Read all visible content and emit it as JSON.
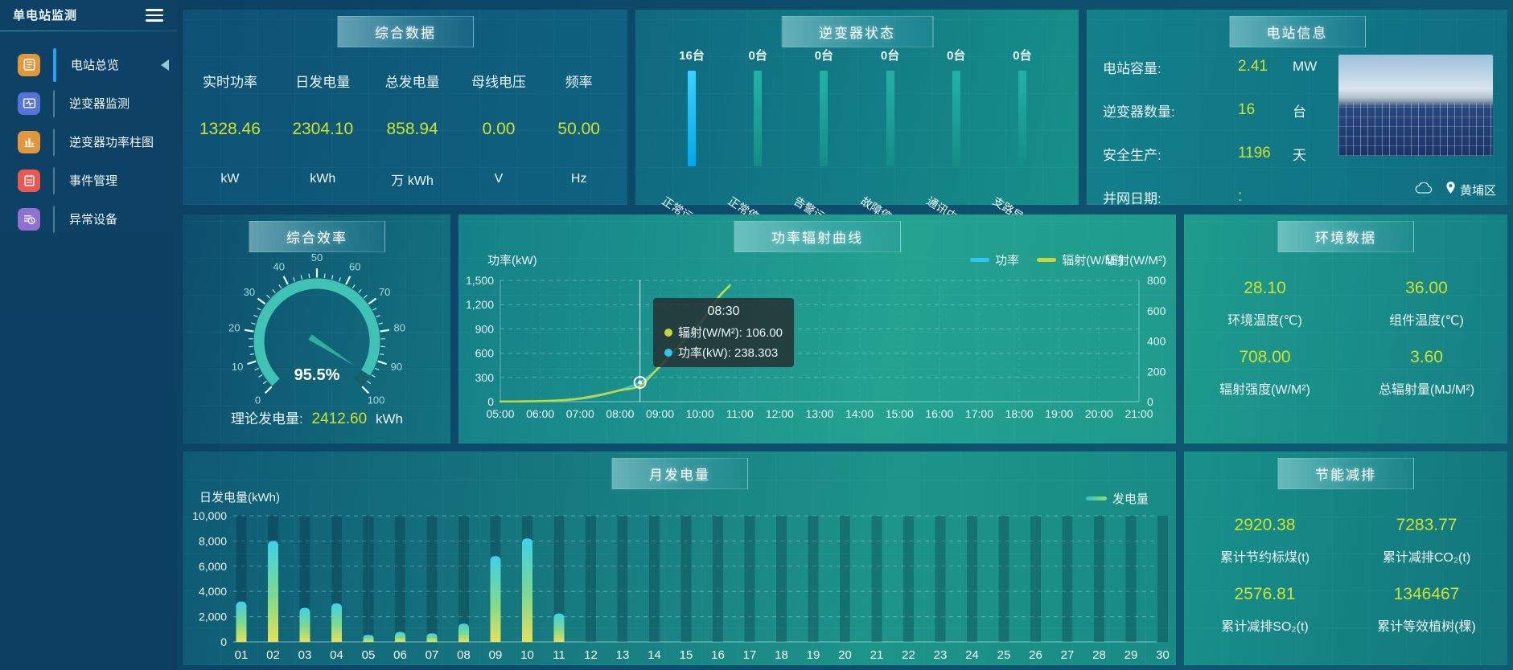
{
  "app": {
    "title": "单电站监测"
  },
  "sidebar": {
    "items": [
      {
        "label": "电站总览",
        "icon": "overview",
        "color": "#e2973a",
        "active": true
      },
      {
        "label": "逆变器监测",
        "icon": "inverter-monitor",
        "color": "#5673d8",
        "active": false
      },
      {
        "label": "逆变器功率柱图",
        "icon": "power-bars",
        "color": "#e2973a",
        "active": false
      },
      {
        "label": "事件管理",
        "icon": "event-manage",
        "color": "#e85a50",
        "active": false
      },
      {
        "label": "异常设备",
        "icon": "abnormal-device",
        "color": "#9070d0",
        "active": false
      }
    ]
  },
  "summary": {
    "title": "综合数据",
    "metrics": [
      {
        "label": "实时功率",
        "value": "1328.46",
        "unit": "kW"
      },
      {
        "label": "日发电量",
        "value": "2304.10",
        "unit": "kWh"
      },
      {
        "label": "总发电量",
        "value": "858.94",
        "unit": "万 kWh"
      },
      {
        "label": "母线电压",
        "value": "0.00",
        "unit": "V"
      },
      {
        "label": "频率",
        "value": "50.00",
        "unit": "Hz"
      }
    ]
  },
  "inverter_status": {
    "title": "逆变器状态",
    "bars": [
      {
        "count": "16台",
        "label": "正常运行",
        "highlight": true
      },
      {
        "count": "0台",
        "label": "正常停机",
        "highlight": false
      },
      {
        "count": "0台",
        "label": "告警运行",
        "highlight": false
      },
      {
        "count": "0台",
        "label": "故障停机",
        "highlight": false
      },
      {
        "count": "0台",
        "label": "通讯中断",
        "highlight": false
      },
      {
        "count": "0台",
        "label": "支路异常",
        "highlight": false
      }
    ]
  },
  "station_info": {
    "title": "电站信息",
    "rows": [
      {
        "label": "电站容量:",
        "value": "2.41",
        "unit": "MW"
      },
      {
        "label": "逆变器数量:",
        "value": "16",
        "unit": "台"
      },
      {
        "label": "安全生产:",
        "value": "1196",
        "unit": "天"
      },
      {
        "label": "并网日期:",
        "value": ":",
        "unit": ""
      }
    ],
    "district": "黄埔区"
  },
  "efficiency": {
    "title": "综合效率",
    "gauge_label": "95.5%",
    "theory_label": "理论发电量:",
    "theory_value": "2412.60",
    "theory_unit": "kWh"
  },
  "power_curve": {
    "title": "功率辐射曲线"
  },
  "environment": {
    "title": "环境数据",
    "metrics": [
      {
        "value": "28.10",
        "label": "环境温度(℃)"
      },
      {
        "value": "36.00",
        "label": "组件温度(℃)"
      },
      {
        "value": "708.00",
        "label": "辐射强度(W/M²)"
      },
      {
        "value": "3.60",
        "label": "总辐射量(MJ/M²)"
      }
    ]
  },
  "monthly": {
    "title": "月发电量"
  },
  "energy_saving": {
    "title": "节能减排",
    "metrics": [
      {
        "value": "2920.38",
        "label": "累计节约标煤(t)"
      },
      {
        "value": "7283.77",
        "label": "累计减排CO₂(t)"
      },
      {
        "value": "2576.81",
        "label": "累计减排SO₂(t)"
      },
      {
        "value": "1346467",
        "label": "累计等效植树(棵)"
      }
    ]
  },
  "chart_data": [
    {
      "id": "power_radiation",
      "type": "line",
      "title": "功率辐射曲线",
      "x": [
        5,
        5.5,
        6,
        6.5,
        7,
        7.5,
        8,
        8.5,
        9,
        9.5,
        10,
        10.25,
        10.5,
        10.75
      ],
      "x_min": 5,
      "x_max": 21,
      "x_ticks": [
        "05:00",
        "06:00",
        "07:00",
        "08:00",
        "09:00",
        "10:00",
        "11:00",
        "12:00",
        "13:00",
        "14:00",
        "15:00",
        "16:00",
        "17:00",
        "18:00",
        "19:00",
        "20:00",
        "21:00"
      ],
      "series": [
        {
          "name": "功率",
          "axis": "left",
          "color": "#2ec6f2",
          "values": [
            2,
            3,
            6,
            14,
            35,
            78,
            145,
            238.303,
            430,
            690,
            950,
            1120,
            1300,
            1445
          ]
        },
        {
          "name": "辐射(W/M²)",
          "axis": "right",
          "color": "#c8d832",
          "values": [
            1,
            2,
            4,
            9,
            22,
            45,
            75,
            106,
            235,
            380,
            520,
            610,
            700,
            765
          ]
        }
      ],
      "left_axis": {
        "label": "功率(kW)",
        "max": 1500,
        "ticks": [
          0,
          300,
          600,
          900,
          1200,
          1500
        ],
        "tick_labels": [
          "0",
          "300",
          "600",
          "900",
          "1,200",
          "1,500"
        ]
      },
      "right_axis": {
        "label": "辐射(W/M²)",
        "max": 800,
        "ticks": [
          0,
          200,
          400,
          600,
          800
        ],
        "tick_labels": [
          "0",
          "200",
          "400",
          "600",
          "800"
        ]
      },
      "legend": [
        "功率",
        "辐射(W/M²)"
      ],
      "tooltip": {
        "time": "08:30",
        "x": 8.5,
        "rows": [
          {
            "color": "#c8d832",
            "text": "辐射(W/M²): 106.00"
          },
          {
            "color": "#2ec6f2",
            "text": "功率(kW): 238.303"
          }
        ],
        "highlight_value": 238.303
      }
    },
    {
      "id": "monthly_generation",
      "type": "bar",
      "title": "月发电量",
      "ylabel": "日发电量(kWh)",
      "legend": "发电量",
      "categories": [
        "01",
        "02",
        "03",
        "04",
        "05",
        "06",
        "07",
        "08",
        "09",
        "10",
        "11",
        "12",
        "13",
        "14",
        "15",
        "16",
        "17",
        "18",
        "19",
        "20",
        "21",
        "22",
        "23",
        "24",
        "25",
        "26",
        "27",
        "28",
        "29",
        "30"
      ],
      "values": [
        3200,
        8000,
        2700,
        3050,
        550,
        800,
        680,
        1450,
        6800,
        8200,
        2250,
        0,
        0,
        0,
        0,
        0,
        0,
        0,
        0,
        0,
        0,
        0,
        0,
        0,
        0,
        0,
        0,
        0,
        0,
        0
      ],
      "ymax": 10000,
      "y_ticks": [
        0,
        2000,
        4000,
        6000,
        8000,
        10000
      ],
      "y_tick_labels": [
        "0",
        "2,000",
        "4,000",
        "6,000",
        "8,000",
        "10,000"
      ]
    },
    {
      "id": "efficiency_gauge",
      "type": "gauge",
      "min": 0,
      "max": 100,
      "value": 95.5,
      "label": "95.5%",
      "major_ticks": [
        0,
        10,
        20,
        30,
        40,
        50,
        60,
        70,
        80,
        90,
        100
      ]
    },
    {
      "id": "inverter_status_bars",
      "type": "bar",
      "categories": [
        "正常运行",
        "正常停机",
        "告警运行",
        "故障停机",
        "通讯中断",
        "支路异常"
      ],
      "values": [
        16,
        0,
        0,
        0,
        0,
        0
      ],
      "unit": "台"
    }
  ]
}
